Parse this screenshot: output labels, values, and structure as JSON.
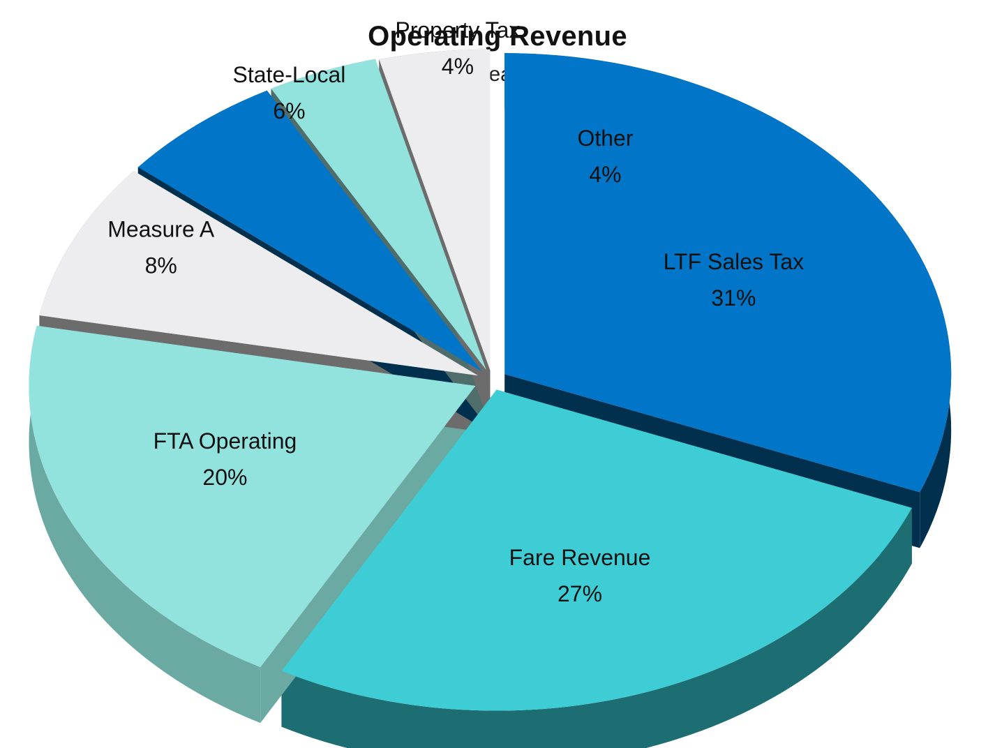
{
  "chart_data": {
    "type": "pie",
    "title": "Operating Revenue",
    "subtitle": "Fiscal Year 18-19",
    "slices": [
      {
        "label": "LTF Sales Tax",
        "value": 31,
        "value_label": "31%",
        "color": "#0176c8",
        "side_color": "#00304e"
      },
      {
        "label": "Fare Revenue",
        "value": 27,
        "value_label": "27%",
        "color": "#3ecdd4",
        "side_color": "#1d6e72"
      },
      {
        "label": "FTA Operating",
        "value": 20,
        "value_label": "20%",
        "color": "#92e2de",
        "side_color": "#6aaaa2"
      },
      {
        "label": "Measure A",
        "value": 8,
        "value_label": "8%",
        "color": "#ededef",
        "side_color": "#6c6c6c"
      },
      {
        "label": "State-Local",
        "value": 6,
        "value_label": "6%",
        "color": "#0176c8",
        "side_color": "#00304e"
      },
      {
        "label": "Property Tax",
        "value": 4,
        "value_label": "4%",
        "color": "#92e2de",
        "side_color": "#4f6e6b"
      },
      {
        "label": "Other",
        "value": 4,
        "value_label": "4%",
        "color": "#ededef",
        "side_color": "#6c6c6c"
      }
    ]
  }
}
